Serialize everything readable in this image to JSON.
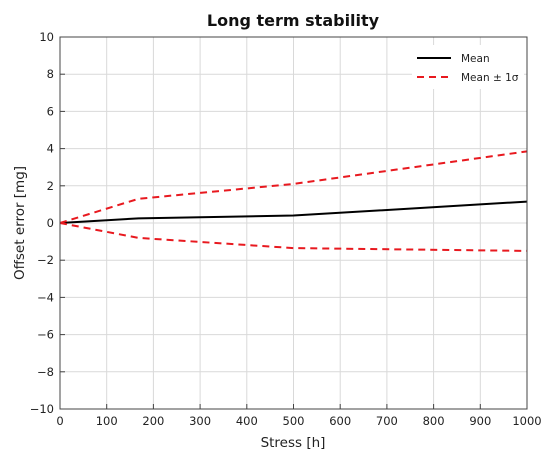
{
  "chart_data": {
    "type": "line",
    "title": "Long term stability",
    "xlabel": "Stress [h]",
    "ylabel": "Offset error [mg]",
    "xlim": [
      0,
      1000
    ],
    "ylim": [
      -10,
      10
    ],
    "xticks": [
      0,
      100,
      200,
      300,
      400,
      500,
      600,
      700,
      800,
      900,
      1000
    ],
    "yticks": [
      -10,
      -8,
      -6,
      -4,
      -2,
      0,
      2,
      4,
      6,
      8,
      10
    ],
    "grid": true,
    "legend_position": "top-right",
    "series": [
      {
        "name": "Mean",
        "color": "#000000",
        "style": "solid",
        "x": [
          0,
          168,
          500,
          1000
        ],
        "y": [
          0,
          0.25,
          0.4,
          1.15
        ]
      },
      {
        "name": "Mean ± 1σ",
        "color": "#e8191f",
        "style": "dashed",
        "x": [
          0,
          168,
          500,
          1000
        ],
        "y": [
          0,
          1.3,
          2.1,
          3.85
        ]
      },
      {
        "name": "",
        "color": "#e8191f",
        "style": "dashed",
        "x": [
          0,
          168,
          500,
          1000
        ],
        "y": [
          0,
          -0.8,
          -1.35,
          -1.5
        ]
      }
    ]
  }
}
